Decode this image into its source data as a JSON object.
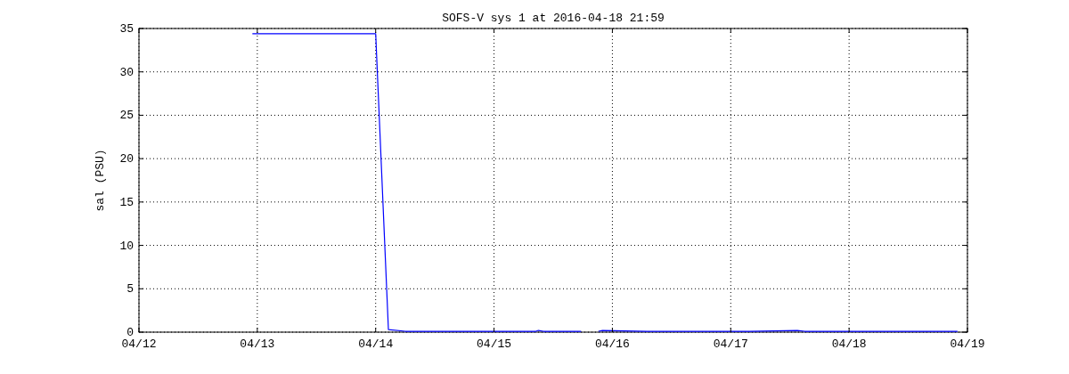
{
  "chart_data": {
    "type": "line",
    "title": "SOFS-V sys 1 at 2016-04-18 21:59",
    "ylabel": "sal (PSU)",
    "x": [
      "2016-04-12T23:00",
      "2016-04-14T00:00",
      "2016-04-14T02:35",
      "2016-04-14T06:00",
      "2016-04-15T08:30",
      "2016-04-15T09:00",
      "2016-04-15T10:00",
      "2016-04-15T17:40",
      "2016-04-15T19:00",
      "2016-04-15T21:10",
      "2016-04-15T22:00",
      "2016-04-16T07:00",
      "2016-04-17T03:50",
      "2016-04-17T13:30",
      "2016-04-17T15:00",
      "2016-04-18T21:59"
    ],
    "series": [
      {
        "color": "#0000ff",
        "values": [
          34.4,
          34.4,
          0.3,
          0.1,
          0.1,
          0.2,
          0.1,
          0.1,
          null,
          0.1,
          0.2,
          0.1,
          0.1,
          0.2,
          0.1,
          0.1
        ]
      }
    ],
    "xlim": [
      "2016-04-12",
      "2016-04-19"
    ],
    "xticks": [
      {
        "value": "2016-04-12",
        "label": "04/12"
      },
      {
        "value": "2016-04-13",
        "label": "04/13"
      },
      {
        "value": "2016-04-14",
        "label": "04/14"
      },
      {
        "value": "2016-04-15",
        "label": "04/15"
      },
      {
        "value": "2016-04-16",
        "label": "04/16"
      },
      {
        "value": "2016-04-17",
        "label": "04/17"
      },
      {
        "value": "2016-04-18",
        "label": "04/18"
      },
      {
        "value": "2016-04-19",
        "label": "04/19"
      }
    ],
    "ylim": [
      0,
      35
    ],
    "yticks": [
      0,
      5,
      10,
      15,
      20,
      25,
      30,
      35
    ],
    "grid": true,
    "line_style": "solid",
    "marker": "none"
  }
}
